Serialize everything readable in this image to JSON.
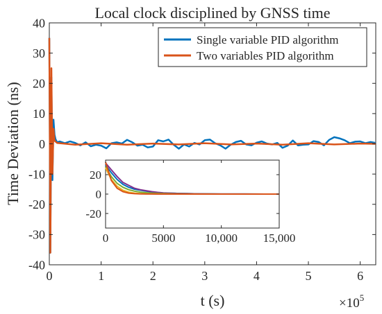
{
  "chart_data": [
    {
      "type": "line",
      "title": "Local clock disciplined by GNSS time",
      "xlabel": "t (s)",
      "ylabel": "Time Deviation (ns)",
      "x_exponent_label": "×10",
      "x_exponent_power": "5",
      "xlim": [
        0,
        6.3
      ],
      "ylim": [
        -40,
        40
      ],
      "xticks": [
        0,
        1,
        2,
        3,
        4,
        5,
        6
      ],
      "yticks": [
        40,
        30,
        20,
        10,
        0,
        -10,
        -20,
        -30,
        -40
      ],
      "legend_position": "top-right",
      "grid": false,
      "series": [
        {
          "name": "Single variable PID algorithm",
          "color": "#0072BD",
          "x": [
            0,
            0.02,
            0.04,
            0.06,
            0.08,
            0.1,
            0.12,
            0.15,
            0.2,
            0.3,
            0.4,
            0.5,
            0.6,
            0.7,
            0.8,
            0.9,
            1.0,
            1.1,
            1.2,
            1.3,
            1.4,
            1.5,
            1.6,
            1.7,
            1.8,
            1.9,
            2.0,
            2.1,
            2.2,
            2.3,
            2.4,
            2.5,
            2.6,
            2.7,
            2.8,
            2.9,
            3.0,
            3.1,
            3.2,
            3.3,
            3.4,
            3.5,
            3.6,
            3.7,
            3.8,
            3.9,
            4.0,
            4.1,
            4.2,
            4.3,
            4.4,
            4.5,
            4.6,
            4.7,
            4.8,
            4.9,
            5.0,
            5.1,
            5.2,
            5.3,
            5.4,
            5.5,
            5.6,
            5.7,
            5.8,
            5.9,
            6.0,
            6.1,
            6.2,
            6.3
          ],
          "y": [
            35,
            -36,
            22,
            -12,
            8,
            3,
            1.5,
            0.5,
            0.8,
            0.2,
            0.8,
            0.3,
            -0.5,
            0.5,
            -0.8,
            -0.3,
            -0.6,
            -1.5,
            0.2,
            0.5,
            0.1,
            1.3,
            0.5,
            -0.6,
            -0.3,
            -1.2,
            -0.9,
            1.2,
            0.8,
            1.4,
            -0.3,
            -1.6,
            -0.2,
            -0.9,
            0.3,
            -0.2,
            1.2,
            1.4,
            0.2,
            -0.5,
            -1.6,
            -0.3,
            0.6,
            1.0,
            -0.2,
            -0.5,
            0.4,
            0.8,
            0.1,
            -0.2,
            0.3,
            -1.3,
            -0.6,
            1.1,
            -0.5,
            -0.3,
            -0.2,
            0.9,
            0.6,
            -0.5,
            1.3,
            2.2,
            1.8,
            1.2,
            0.2,
            0.7,
            0.8,
            0.2,
            0.6,
            0.3
          ]
        },
        {
          "name": "Two variables PID algorithm",
          "color": "#D95319",
          "x": [
            0,
            0.02,
            0.04,
            0.06,
            0.08,
            0.1,
            0.15,
            0.5,
            1.0,
            1.5,
            2.0,
            2.5,
            3.0,
            3.5,
            4.0,
            4.5,
            5.0,
            5.5,
            6.0,
            6.3
          ],
          "y": [
            35,
            -36,
            25,
            -10,
            5,
            1,
            0.3,
            -0.3,
            0.2,
            -0.3,
            0.1,
            -0.2,
            0.2,
            -0.2,
            0.1,
            -0.3,
            0.2,
            -0.2,
            0.1,
            0
          ]
        }
      ]
    },
    {
      "type": "line",
      "position": "inset",
      "xlim": [
        0,
        15000
      ],
      "ylim": [
        -35,
        35
      ],
      "xticks": [
        0,
        5000,
        10000,
        15000
      ],
      "xtick_labels": [
        "0",
        "5000",
        "10,000",
        "15,000"
      ],
      "yticks": [
        20,
        0,
        -20
      ],
      "series": [
        {
          "color": "#0072BD",
          "x": [
            0,
            500,
            1000,
            1500,
            2000,
            2500,
            3000,
            3500,
            4000,
            4500,
            5000,
            6000,
            7000,
            8000,
            9000,
            10000,
            12000,
            15000
          ],
          "y": [
            30,
            22,
            15,
            10,
            7,
            5,
            4,
            3,
            2,
            1.5,
            1,
            0.8,
            0.5,
            0.3,
            0.2,
            0.1,
            0.05,
            0
          ]
        },
        {
          "color": "#7E2F8E",
          "x": [
            0,
            500,
            1000,
            1500,
            2000,
            2500,
            3000,
            3500,
            4000,
            4500,
            5000,
            6000,
            7000,
            8000,
            9000,
            10000,
            12000,
            15000
          ],
          "y": [
            32,
            25,
            18,
            12,
            9,
            6,
            4.5,
            3.5,
            2.5,
            1.8,
            1.2,
            0.8,
            0.5,
            0.3,
            0.2,
            0.1,
            0.05,
            0
          ]
        },
        {
          "color": "#77AC30",
          "x": [
            0,
            500,
            1000,
            1500,
            2000,
            2500,
            3000,
            3500,
            4000,
            4500,
            5000,
            6000,
            7000,
            8000,
            9000,
            10000,
            12000,
            15000
          ],
          "y": [
            28,
            18,
            11,
            7,
            4.5,
            3,
            2,
            1.4,
            1,
            0.7,
            0.5,
            0.3,
            0.2,
            0.1,
            0.05,
            0.02,
            0,
            0
          ]
        },
        {
          "color": "#EDB120",
          "x": [
            0,
            500,
            1000,
            1500,
            2000,
            2500,
            3000,
            3500,
            4000,
            4500,
            5000,
            6000,
            7000,
            8000,
            9000,
            10000,
            12000,
            15000
          ],
          "y": [
            27,
            15,
            8,
            4,
            2,
            1,
            0.5,
            0.3,
            0.2,
            0.1,
            0.05,
            0,
            0,
            0,
            0,
            0,
            0,
            0
          ]
        },
        {
          "color": "#D95319",
          "x": [
            0,
            500,
            1000,
            1500,
            2000,
            2500,
            3000,
            3500,
            4000,
            4500,
            5000,
            6000,
            7000,
            8000,
            9000,
            10000,
            12000,
            15000
          ],
          "y": [
            33,
            14,
            6,
            2.5,
            1,
            0.4,
            0.2,
            0.1,
            0.05,
            0,
            0,
            0,
            0,
            0,
            0,
            0,
            0,
            0
          ]
        }
      ]
    }
  ]
}
